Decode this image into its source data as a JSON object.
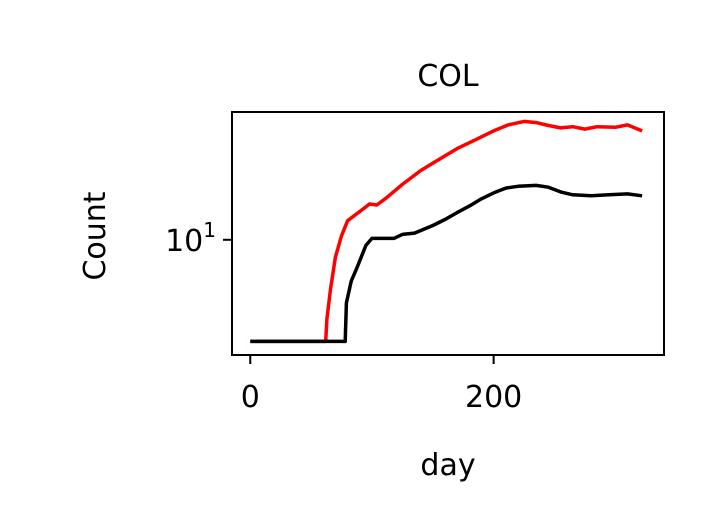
{
  "chart_data": {
    "type": "line",
    "title": "COL",
    "xlabel": "day",
    "ylabel": "Count",
    "xlim": [
      -15,
      340
    ],
    "x_ticks": [
      {
        "value": 0,
        "label": "0"
      },
      {
        "value": 200,
        "label": "200"
      }
    ],
    "yscale": "log",
    "ylim": [
      4.3,
      25.5
    ],
    "y_ticks": [
      {
        "value": 10,
        "base": "10",
        "exponent": "1"
      }
    ],
    "grid": false,
    "legend": "none",
    "series": [
      {
        "color": "#ff0000",
        "points": [
          [
            0,
            4.75
          ],
          [
            62,
            4.75
          ],
          [
            63,
            5.6
          ],
          [
            66,
            7.0
          ],
          [
            70,
            8.8
          ],
          [
            75,
            10.3
          ],
          [
            80,
            11.5
          ],
          [
            90,
            12.3
          ],
          [
            98,
            13.0
          ],
          [
            104,
            12.9
          ],
          [
            112,
            13.6
          ],
          [
            125,
            15.0
          ],
          [
            140,
            16.6
          ],
          [
            155,
            18.0
          ],
          [
            170,
            19.5
          ],
          [
            185,
            20.8
          ],
          [
            200,
            22.2
          ],
          [
            212,
            23.2
          ],
          [
            225,
            23.8
          ],
          [
            235,
            23.6
          ],
          [
            245,
            23.1
          ],
          [
            255,
            22.7
          ],
          [
            265,
            22.9
          ],
          [
            275,
            22.5
          ],
          [
            285,
            22.9
          ],
          [
            300,
            22.8
          ],
          [
            310,
            23.2
          ],
          [
            322,
            22.2
          ]
        ]
      },
      {
        "color": "#000000",
        "points": [
          [
            0,
            4.75
          ],
          [
            78,
            4.75
          ],
          [
            79,
            6.3
          ],
          [
            83,
            7.4
          ],
          [
            88,
            8.2
          ],
          [
            95,
            9.6
          ],
          [
            100,
            10.1
          ],
          [
            110,
            10.1
          ],
          [
            118,
            10.1
          ],
          [
            125,
            10.4
          ],
          [
            135,
            10.5
          ],
          [
            150,
            11.1
          ],
          [
            160,
            11.6
          ],
          [
            170,
            12.2
          ],
          [
            180,
            12.8
          ],
          [
            190,
            13.5
          ],
          [
            200,
            14.1
          ],
          [
            210,
            14.6
          ],
          [
            220,
            14.8
          ],
          [
            235,
            14.9
          ],
          [
            245,
            14.7
          ],
          [
            255,
            14.2
          ],
          [
            265,
            13.9
          ],
          [
            280,
            13.8
          ],
          [
            295,
            13.9
          ],
          [
            310,
            14.0
          ],
          [
            322,
            13.8
          ]
        ]
      }
    ]
  }
}
